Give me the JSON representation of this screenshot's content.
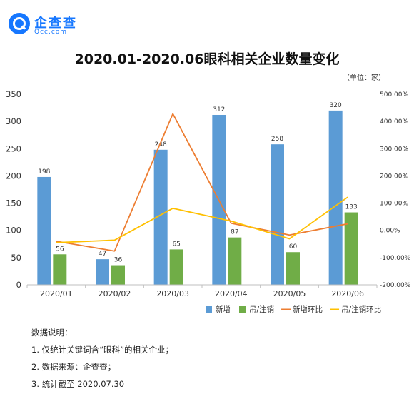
{
  "brand": {
    "name": "企查查",
    "site": "Qcc.com"
  },
  "title": "2020.01-2020.06眼科相关企业数量变化",
  "unit_note": "（单位：家）",
  "chart_data": {
    "type": "bar",
    "categories": [
      "2020/01",
      "2020/02",
      "2020/03",
      "2020/04",
      "2020/05",
      "2020/06"
    ],
    "ylim": [
      0,
      350
    ],
    "yticks": [
      0,
      50,
      100,
      150,
      200,
      250,
      300,
      350
    ],
    "y2lim": [
      -200,
      500
    ],
    "y2ticks": [
      "-200.00%",
      "-100.00%",
      "0.00%",
      "100.00%",
      "200.00%",
      "300.00%",
      "400.00%",
      "500.00%"
    ],
    "y2tick_values": [
      -200,
      -100,
      0,
      100,
      200,
      300,
      400,
      500
    ],
    "grid": false,
    "legend_position": "bottom-right",
    "series": [
      {
        "name": "新增",
        "kind": "bar",
        "axis": "left",
        "color": "#5b9bd5",
        "values": [
          198,
          47,
          248,
          312,
          258,
          320
        ]
      },
      {
        "name": "吊/注销",
        "kind": "bar",
        "axis": "left",
        "color": "#70ad47",
        "values": [
          56,
          36,
          65,
          87,
          60,
          133
        ]
      },
      {
        "name": "新增环比",
        "kind": "line",
        "axis": "right",
        "color": "#ed7d31",
        "values": [
          -40,
          -76,
          428,
          26,
          -17,
          24
        ]
      },
      {
        "name": "吊/注销环比",
        "kind": "line",
        "axis": "right",
        "color": "#ffc000",
        "values": [
          -45,
          -36,
          81,
          34,
          -31,
          122
        ]
      }
    ]
  },
  "notes": {
    "heading": "数据说明：",
    "items": [
      "1. 仅统计关键词含“眼科”的相关企业；",
      "2. 数据来源：企查查；",
      "3. 统计截至 2020.07.30"
    ]
  }
}
